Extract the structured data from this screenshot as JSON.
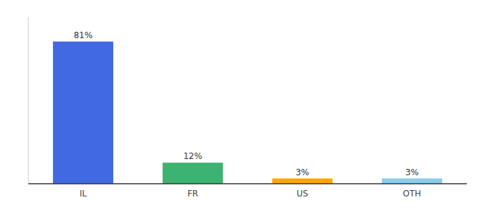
{
  "chart_data": {
    "type": "bar",
    "categories": [
      "IL",
      "FR",
      "US",
      "OTH"
    ],
    "values": [
      81,
      12,
      3,
      3
    ],
    "value_labels": [
      "81%",
      "12%",
      "3%",
      "3%"
    ],
    "colors": [
      "#4169E1",
      "#3CB371",
      "#FFA500",
      "#87CEEB"
    ],
    "ylim": [
      0,
      95
    ],
    "data_labels": true,
    "tick_labels": "x",
    "grid": false
  }
}
